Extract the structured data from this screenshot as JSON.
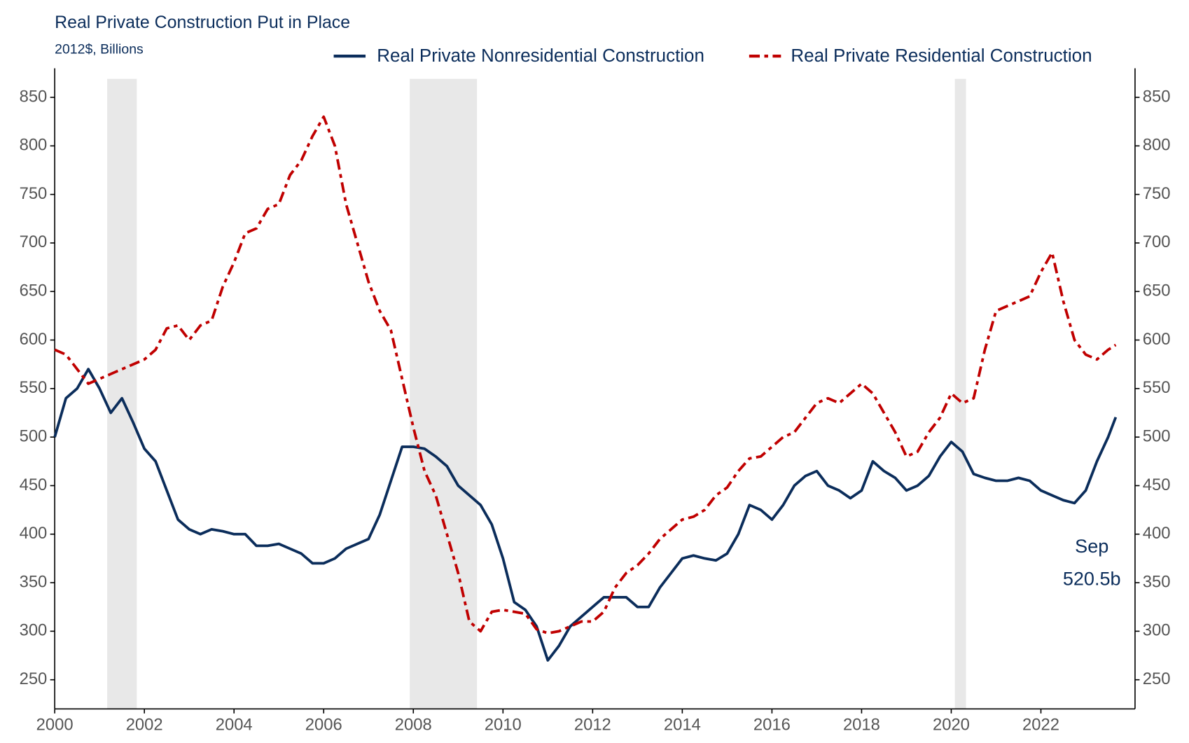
{
  "chart_data": {
    "type": "line",
    "title": "Real Private Construction Put in Place",
    "subtitle": "2012$, Billions",
    "annotations": [
      "Sep",
      "520.5b"
    ],
    "x": [
      2000,
      2000.25,
      2000.5,
      2000.75,
      2001,
      2001.25,
      2001.5,
      2001.75,
      2002,
      2002.25,
      2002.5,
      2002.75,
      2003,
      2003.25,
      2003.5,
      2003.75,
      2004,
      2004.25,
      2004.5,
      2004.75,
      2005,
      2005.25,
      2005.5,
      2005.75,
      2006,
      2006.25,
      2006.5,
      2006.75,
      2007,
      2007.25,
      2007.5,
      2007.75,
      2008,
      2008.25,
      2008.5,
      2008.75,
      2009,
      2009.25,
      2009.5,
      2009.75,
      2010,
      2010.25,
      2010.5,
      2010.75,
      2011,
      2011.25,
      2011.5,
      2011.75,
      2012,
      2012.25,
      2012.5,
      2012.75,
      2013,
      2013.25,
      2013.5,
      2013.75,
      2014,
      2014.25,
      2014.5,
      2014.75,
      2015,
      2015.25,
      2015.5,
      2015.75,
      2016,
      2016.25,
      2016.5,
      2016.75,
      2017,
      2017.25,
      2017.5,
      2017.75,
      2018,
      2018.25,
      2018.5,
      2018.75,
      2019,
      2019.25,
      2019.5,
      2019.75,
      2020,
      2020.25,
      2020.5,
      2020.75,
      2021,
      2021.25,
      2021.5,
      2021.75,
      2022,
      2022.25,
      2022.5,
      2022.75,
      2023,
      2023.25,
      2023.5,
      2023.67
    ],
    "series": [
      {
        "name": "Real Private Nonresidential Construction",
        "color": "#0b2d5b",
        "dash": false,
        "values": [
          500,
          540,
          550,
          570,
          550,
          525,
          540,
          515,
          488,
          475,
          445,
          415,
          405,
          400,
          405,
          403,
          400,
          400,
          388,
          388,
          390,
          385,
          380,
          370,
          370,
          375,
          385,
          390,
          395,
          420,
          455,
          490,
          490,
          488,
          480,
          470,
          450,
          440,
          430,
          410,
          375,
          330,
          322,
          305,
          270,
          285,
          305,
          315,
          325,
          335,
          335,
          335,
          325,
          325,
          345,
          360,
          375,
          378,
          375,
          373,
          380,
          400,
          430,
          425,
          415,
          430,
          450,
          460,
          465,
          450,
          445,
          437,
          445,
          475,
          465,
          458,
          445,
          450,
          460,
          480,
          495,
          485,
          462,
          458,
          455,
          455,
          458,
          455,
          445,
          440,
          435,
          432,
          445,
          475,
          500,
          520.5
        ]
      },
      {
        "name": "Real Private Residential Construction",
        "color": "#c00000",
        "dash": true,
        "values": [
          590,
          585,
          570,
          555,
          560,
          565,
          570,
          575,
          580,
          590,
          612,
          615,
          600,
          615,
          620,
          655,
          680,
          710,
          715,
          735,
          740,
          770,
          785,
          810,
          830,
          800,
          740,
          700,
          660,
          630,
          610,
          560,
          510,
          465,
          440,
          400,
          360,
          310,
          300,
          320,
          322,
          320,
          318,
          302,
          298,
          300,
          305,
          310,
          310,
          320,
          345,
          360,
          368,
          380,
          395,
          405,
          415,
          418,
          425,
          440,
          448,
          465,
          478,
          480,
          490,
          500,
          505,
          520,
          535,
          540,
          535,
          545,
          555,
          545,
          525,
          505,
          480,
          485,
          505,
          520,
          545,
          535,
          540,
          590,
          630,
          635,
          640,
          645,
          670,
          690,
          640,
          600,
          585,
          580,
          590,
          595
        ]
      }
    ],
    "shaded_periods": [
      [
        2001.17,
        2001.83
      ],
      [
        2007.92,
        2009.42
      ],
      [
        2020.08,
        2020.33
      ]
    ],
    "xlim": [
      2000,
      2024.1
    ],
    "xticks": [
      2000,
      2002,
      2004,
      2006,
      2008,
      2010,
      2012,
      2014,
      2016,
      2018,
      2020,
      2022
    ],
    "ylim": [
      220,
      880
    ],
    "yticks": [
      250,
      300,
      350,
      400,
      450,
      500,
      550,
      600,
      650,
      700,
      750,
      800,
      850
    ],
    "y2lim": [
      220,
      880
    ],
    "y2ticks": [
      250,
      300,
      350,
      400,
      450,
      500,
      550,
      600,
      650,
      700,
      750,
      800,
      850
    ]
  }
}
